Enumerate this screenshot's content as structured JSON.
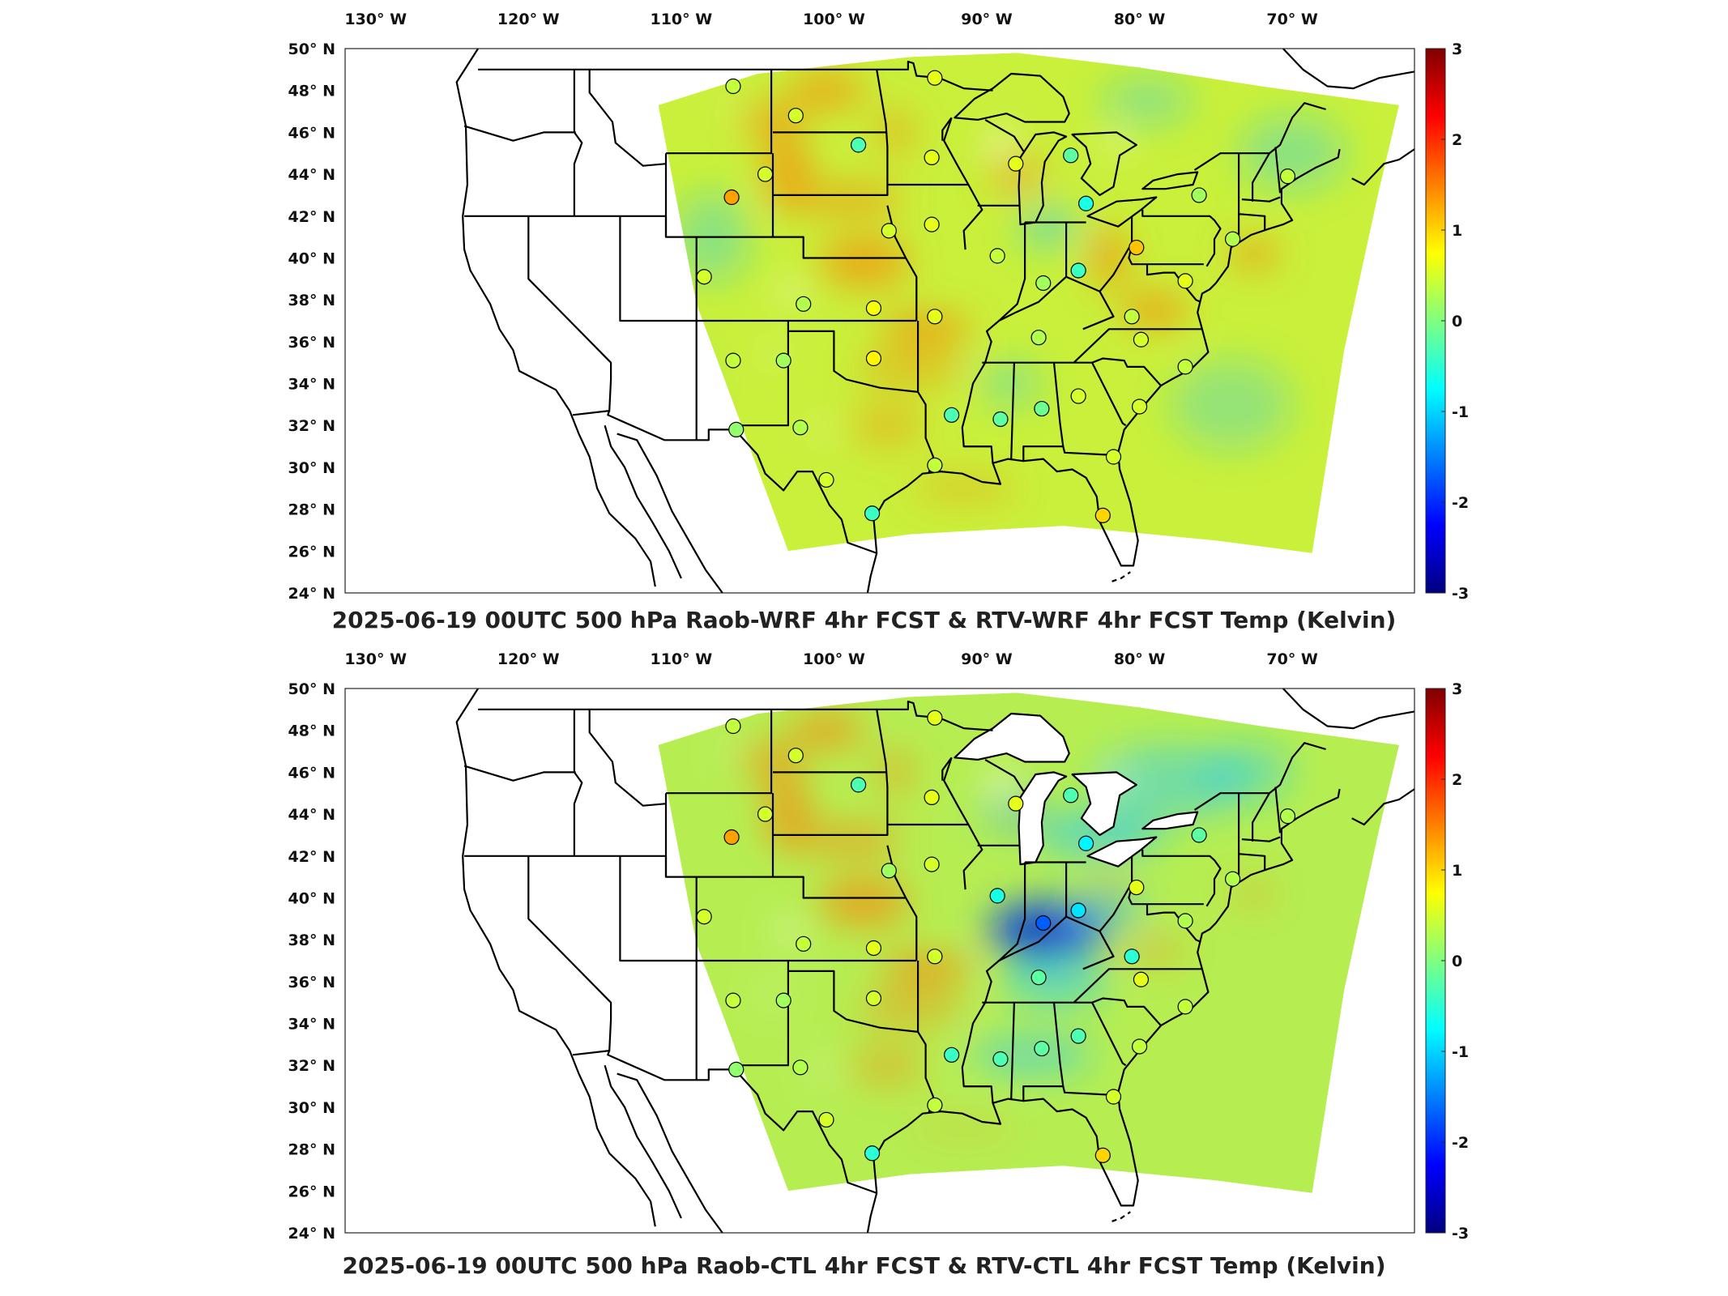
{
  "figure": {
    "panels": [
      {
        "title": "2025-06-19 00UTC 500 hPa Raob-WRF 4hr FCST & RTV-WRF 4hr FCST Temp (Kelvin)",
        "variant": "wrf"
      },
      {
        "title": "2025-06-19 00UTC 500 hPa Raob-CTL 4hr FCST & RTV-CTL 4hr FCST Temp (Kelvin)",
        "variant": "ctl"
      }
    ],
    "longitude_labels": [
      "130° W",
      "120° W",
      "110° W",
      "100° W",
      "90° W",
      "80° W",
      "70° W"
    ],
    "latitude_labels": [
      "50° N",
      "48° N",
      "46° N",
      "44° N",
      "42° N",
      "40° N",
      "38° N",
      "36° N",
      "34° N",
      "32° N",
      "30° N",
      "28° N",
      "26° N",
      "24° N"
    ],
    "colorbar": {
      "ticks": [
        "3",
        "2",
        "1",
        "0",
        "-1",
        "-2",
        "-3"
      ],
      "colormap": "jet",
      "colors": [
        "#800000",
        "#ff0000",
        "#ff8000",
        "#ffff00",
        "#80ff80",
        "#00ffff",
        "#0080ff",
        "#0000ff",
        "#000080"
      ]
    }
  },
  "chart_data": {
    "type": "heatmap",
    "variable": "Temp (Kelvin)",
    "level": "500 hPa",
    "valid_time": "2025-06-19 00UTC",
    "value_range": [
      -3,
      3
    ],
    "lon_range": [
      -132,
      -62
    ],
    "lat_range": [
      24,
      50
    ],
    "stations": [
      {
        "lon": -106.6,
        "lat": 48.2,
        "wrf": 0.4,
        "ctl": 0.4
      },
      {
        "lon": -93.4,
        "lat": 48.6,
        "wrf": 0.6,
        "ctl": 0.6
      },
      {
        "lon": -102.5,
        "lat": 46.8,
        "wrf": 0.5,
        "ctl": 0.5
      },
      {
        "lon": -98.4,
        "lat": 45.4,
        "wrf": -0.3,
        "ctl": -0.3
      },
      {
        "lon": -93.6,
        "lat": 44.8,
        "wrf": 0.6,
        "ctl": 0.6
      },
      {
        "lon": -88.1,
        "lat": 44.5,
        "wrf": 0.6,
        "ctl": 0.6
      },
      {
        "lon": -84.5,
        "lat": 44.9,
        "wrf": -0.2,
        "ctl": -0.3
      },
      {
        "lon": -104.5,
        "lat": 44.0,
        "wrf": 0.5,
        "ctl": 0.5
      },
      {
        "lon": -106.7,
        "lat": 42.9,
        "wrf": 1.3,
        "ctl": 1.3
      },
      {
        "lon": -83.5,
        "lat": 42.6,
        "wrf": -0.6,
        "ctl": -0.8
      },
      {
        "lon": -76.1,
        "lat": 43.0,
        "wrf": 0.2,
        "ctl": -0.2
      },
      {
        "lon": -70.3,
        "lat": 43.9,
        "wrf": 0.4,
        "ctl": 0.3
      },
      {
        "lon": -93.6,
        "lat": 41.6,
        "wrf": 0.6,
        "ctl": 0.5
      },
      {
        "lon": -96.4,
        "lat": 41.3,
        "wrf": 0.5,
        "ctl": 0.2
      },
      {
        "lon": -89.3,
        "lat": 40.1,
        "wrf": 0.4,
        "ctl": -0.6
      },
      {
        "lon": -86.3,
        "lat": 38.8,
        "wrf": 0.2,
        "ctl": -1.7
      },
      {
        "lon": -84.0,
        "lat": 39.4,
        "wrf": -0.4,
        "ctl": -0.9
      },
      {
        "lon": -80.2,
        "lat": 40.5,
        "wrf": 1.1,
        "ctl": 0.6
      },
      {
        "lon": -77.0,
        "lat": 38.9,
        "wrf": 0.6,
        "ctl": 0.3
      },
      {
        "lon": -73.9,
        "lat": 40.9,
        "wrf": 0.3,
        "ctl": 0.3
      },
      {
        "lon": -108.5,
        "lat": 39.1,
        "wrf": 0.5,
        "ctl": 0.5
      },
      {
        "lon": -102.0,
        "lat": 37.8,
        "wrf": 0.3,
        "ctl": 0.4
      },
      {
        "lon": -97.4,
        "lat": 37.6,
        "wrf": 0.7,
        "ctl": 0.6
      },
      {
        "lon": -93.4,
        "lat": 37.2,
        "wrf": 0.6,
        "ctl": 0.5
      },
      {
        "lon": -86.6,
        "lat": 36.2,
        "wrf": 0.3,
        "ctl": -0.2
      },
      {
        "lon": -80.5,
        "lat": 37.2,
        "wrf": 0.4,
        "ctl": -0.5
      },
      {
        "lon": -79.9,
        "lat": 36.1,
        "wrf": 0.5,
        "ctl": 0.6
      },
      {
        "lon": -77.0,
        "lat": 34.8,
        "wrf": 0.4,
        "ctl": 0.4
      },
      {
        "lon": -106.6,
        "lat": 35.1,
        "wrf": 0.4,
        "ctl": 0.4
      },
      {
        "lon": -103.3,
        "lat": 35.1,
        "wrf": 0.2,
        "ctl": 0.2
      },
      {
        "lon": -97.4,
        "lat": 35.2,
        "wrf": 0.8,
        "ctl": 0.5
      },
      {
        "lon": -92.3,
        "lat": 32.5,
        "wrf": -0.3,
        "ctl": -0.4
      },
      {
        "lon": -89.1,
        "lat": 32.3,
        "wrf": -0.2,
        "ctl": -0.3
      },
      {
        "lon": -86.4,
        "lat": 32.8,
        "wrf": -0.1,
        "ctl": -0.2
      },
      {
        "lon": -84.0,
        "lat": 33.4,
        "wrf": 0.5,
        "ctl": -0.3
      },
      {
        "lon": -80.0,
        "lat": 32.9,
        "wrf": 0.5,
        "ctl": 0.4
      },
      {
        "lon": -106.4,
        "lat": 31.8,
        "wrf": 0.1,
        "ctl": 0.1
      },
      {
        "lon": -102.2,
        "lat": 31.9,
        "wrf": 0.3,
        "ctl": 0.3
      },
      {
        "lon": -100.5,
        "lat": 29.4,
        "wrf": 0.5,
        "ctl": 0.5
      },
      {
        "lon": -93.4,
        "lat": 30.1,
        "wrf": 0.4,
        "ctl": 0.4
      },
      {
        "lon": -81.7,
        "lat": 30.5,
        "wrf": 0.5,
        "ctl": 0.5
      },
      {
        "lon": -97.5,
        "lat": 27.8,
        "wrf": -0.4,
        "ctl": -0.5
      },
      {
        "lon": -82.4,
        "lat": 27.7,
        "wrf": 1.0,
        "ctl": 1.0
      }
    ]
  }
}
